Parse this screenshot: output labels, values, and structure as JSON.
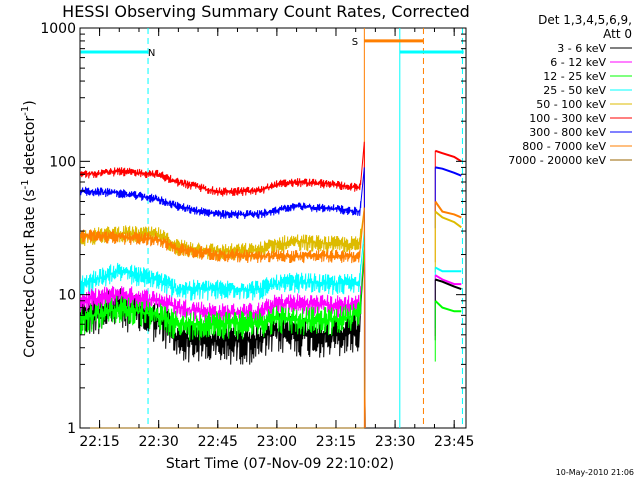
{
  "chart_data": {
    "type": "line",
    "title": "HESSI Observing Summary Count Rates, Corrected",
    "xlabel": "Start Time (07-Nov-09 22:10:02)",
    "ylabel_main": "Corrected Count Rate (s",
    "ylabel_sup1": "-1",
    "ylabel_mid": " detector",
    "ylabel_sup2": "-1",
    "ylabel_end": ")",
    "yscale": "log",
    "ylim": [
      1,
      1000
    ],
    "xlim": [
      22.1672,
      23.8
    ],
    "x_ticks": [
      {
        "v": 22.25,
        "label": "22:15"
      },
      {
        "v": 22.5,
        "label": "22:30"
      },
      {
        "v": 22.75,
        "label": "22:45"
      },
      {
        "v": 23.0,
        "label": "23:00"
      },
      {
        "v": 23.25,
        "label": "23:15"
      },
      {
        "v": 23.5,
        "label": "23:30"
      },
      {
        "v": 23.75,
        "label": "23:45"
      }
    ],
    "y_ticks": [
      {
        "v": 1,
        "label": "1"
      },
      {
        "v": 10,
        "label": "10"
      },
      {
        "v": 100,
        "label": "100"
      },
      {
        "v": 1000,
        "label": "1000"
      }
    ],
    "legend_title": [
      "Det 1,3,4,5,6,9,",
      "Att 0"
    ],
    "legend_placement": "right",
    "series": [
      {
        "name": "3 - 6 keV",
        "color": "#000000",
        "points": [
          [
            22.17,
            7
          ],
          [
            22.33,
            8.5
          ],
          [
            22.5,
            6.5
          ],
          [
            22.58,
            4.8
          ],
          [
            22.75,
            4.5
          ],
          [
            22.92,
            4.6
          ],
          [
            23.0,
            5.5
          ],
          [
            23.08,
            5.2
          ],
          [
            23.25,
            5.0
          ],
          [
            23.35,
            5.5
          ],
          [
            23.355,
            8
          ],
          [
            23.37,
            22
          ],
          [
            23.373,
            1
          ]
        ]
      },
      {
        "name": "6 - 12 keV",
        "color": "#ff00ff",
        "points": [
          [
            22.17,
            9
          ],
          [
            22.33,
            10
          ],
          [
            22.5,
            9
          ],
          [
            22.58,
            8
          ],
          [
            22.75,
            7.2
          ],
          [
            22.92,
            7.3
          ],
          [
            23.0,
            8.5
          ],
          [
            23.08,
            8.6
          ],
          [
            23.25,
            8.3
          ],
          [
            23.35,
            8.5
          ],
          [
            23.355,
            10
          ],
          [
            23.37,
            24
          ],
          [
            23.373,
            1
          ]
        ]
      },
      {
        "name": "12 - 25 keV",
        "color": "#00ff00",
        "points": [
          [
            22.17,
            6.5
          ],
          [
            22.33,
            8
          ],
          [
            22.5,
            7
          ],
          [
            22.58,
            6
          ],
          [
            22.75,
            6.1
          ],
          [
            22.92,
            6.2
          ],
          [
            23.0,
            6.8
          ],
          [
            23.08,
            6.5
          ],
          [
            23.25,
            6.5
          ],
          [
            23.35,
            7.2
          ],
          [
            23.355,
            9
          ],
          [
            23.37,
            24
          ],
          [
            23.373,
            1
          ]
        ]
      },
      {
        "name": "25 - 50 keV",
        "color": "#00ffff",
        "points": [
          [
            22.17,
            12
          ],
          [
            22.33,
            15
          ],
          [
            22.5,
            13
          ],
          [
            22.58,
            11
          ],
          [
            22.75,
            11
          ],
          [
            22.92,
            11
          ],
          [
            23.0,
            12
          ],
          [
            23.08,
            12.5
          ],
          [
            23.25,
            12
          ],
          [
            23.35,
            12.5
          ],
          [
            23.355,
            16
          ],
          [
            23.37,
            30
          ],
          [
            23.373,
            1
          ]
        ]
      },
      {
        "name": "50 - 100 keV",
        "color": "#ddbb00",
        "points": [
          [
            22.17,
            27
          ],
          [
            22.33,
            29
          ],
          [
            22.5,
            28
          ],
          [
            22.58,
            23
          ],
          [
            22.75,
            21
          ],
          [
            22.92,
            21.5
          ],
          [
            23.0,
            24
          ],
          [
            23.08,
            25
          ],
          [
            23.25,
            24
          ],
          [
            23.35,
            24
          ],
          [
            23.355,
            28
          ],
          [
            23.37,
            45
          ],
          [
            23.373,
            1
          ]
        ]
      },
      {
        "name": "100 - 300 keV",
        "color": "#ff0000",
        "points": [
          [
            22.17,
            80
          ],
          [
            22.33,
            84
          ],
          [
            22.5,
            80
          ],
          [
            22.58,
            70
          ],
          [
            22.75,
            59
          ],
          [
            22.92,
            60
          ],
          [
            23.0,
            67
          ],
          [
            23.08,
            70
          ],
          [
            23.25,
            67
          ],
          [
            23.35,
            63
          ],
          [
            23.355,
            70
          ],
          [
            23.37,
            140
          ],
          [
            23.373,
            1
          ]
        ]
      },
      {
        "name": "300 - 800 keV",
        "color": "#0000ff",
        "points": [
          [
            22.17,
            60
          ],
          [
            22.33,
            58
          ],
          [
            22.5,
            52
          ],
          [
            22.58,
            46
          ],
          [
            22.75,
            40
          ],
          [
            22.92,
            40
          ],
          [
            23.0,
            43
          ],
          [
            23.08,
            46
          ],
          [
            23.25,
            44
          ],
          [
            23.35,
            42
          ],
          [
            23.355,
            48
          ],
          [
            23.37,
            90
          ],
          [
            23.373,
            1
          ]
        ]
      },
      {
        "name": "800 - 7000 keV",
        "color": "#ff7f00",
        "points": [
          [
            22.17,
            28
          ],
          [
            22.33,
            27
          ],
          [
            22.5,
            26
          ],
          [
            22.58,
            22
          ],
          [
            22.75,
            20
          ],
          [
            22.92,
            19.5
          ],
          [
            23.0,
            19.5
          ],
          [
            23.08,
            19.5
          ],
          [
            23.25,
            19.5
          ],
          [
            23.35,
            19.5
          ],
          [
            23.355,
            24
          ],
          [
            23.37,
            45
          ],
          [
            23.373,
            1
          ]
        ]
      },
      {
        "name": "7000 - 20000 keV",
        "color": "#996600",
        "points": [
          [
            22.17,
            1
          ],
          [
            23.37,
            1
          ]
        ]
      }
    ],
    "post_gap_series": [
      {
        "color": "#ff0000",
        "points": [
          [
            23.67,
            120
          ],
          [
            23.7,
            115
          ],
          [
            23.75,
            108
          ],
          [
            23.78,
            100
          ]
        ]
      },
      {
        "color": "#0000ff",
        "points": [
          [
            23.67,
            90
          ],
          [
            23.7,
            88
          ],
          [
            23.75,
            82
          ],
          [
            23.78,
            78
          ]
        ]
      },
      {
        "color": "#ff7f00",
        "points": [
          [
            23.67,
            50
          ],
          [
            23.7,
            42
          ],
          [
            23.75,
            40
          ],
          [
            23.78,
            38
          ]
        ]
      },
      {
        "color": "#ddbb00",
        "points": [
          [
            23.67,
            42
          ],
          [
            23.7,
            38
          ],
          [
            23.75,
            35
          ],
          [
            23.78,
            32
          ]
        ]
      },
      {
        "color": "#00ffff",
        "points": [
          [
            23.67,
            16
          ],
          [
            23.7,
            15
          ],
          [
            23.75,
            15
          ],
          [
            23.78,
            15
          ]
        ]
      },
      {
        "color": "#ff00ff",
        "points": [
          [
            23.67,
            14
          ],
          [
            23.7,
            13
          ],
          [
            23.75,
            12
          ],
          [
            23.78,
            12
          ]
        ]
      },
      {
        "color": "#000000",
        "points": [
          [
            23.67,
            13
          ],
          [
            23.7,
            12.5
          ],
          [
            23.75,
            11.5
          ],
          [
            23.78,
            11
          ]
        ]
      },
      {
        "color": "#00ff00",
        "points": [
          [
            23.67,
            9
          ],
          [
            23.7,
            8
          ],
          [
            23.75,
            7.5
          ],
          [
            23.78,
            7.5
          ]
        ]
      }
    ],
    "flag_bars": [
      {
        "label": "N",
        "color": "#00ffff",
        "x1": 22.17,
        "x2": 22.455,
        "y": 660,
        "label_x": 22.47
      },
      {
        "label": "S",
        "color": "#ff7f00",
        "x1": 23.37,
        "x2": 23.62,
        "y": 800,
        "label_x": 23.33
      },
      {
        "label": "",
        "color": "#00ffff",
        "x1": 23.52,
        "x2": 23.79,
        "y": 660
      }
    ],
    "vertical_markers": [
      {
        "x": 22.455,
        "color": "#00ffff",
        "style": "dashed"
      },
      {
        "x": 23.52,
        "color": "#00ffff",
        "style": "solid"
      },
      {
        "x": 23.62,
        "color": "#ff7f00",
        "style": "dashed"
      },
      {
        "x": 23.785,
        "color": "#00ffff",
        "style": "dashed"
      },
      {
        "x": 23.37,
        "color": "#ff7f00",
        "style": "solid"
      }
    ]
  },
  "timestamp": "10-May-2010 21:06"
}
